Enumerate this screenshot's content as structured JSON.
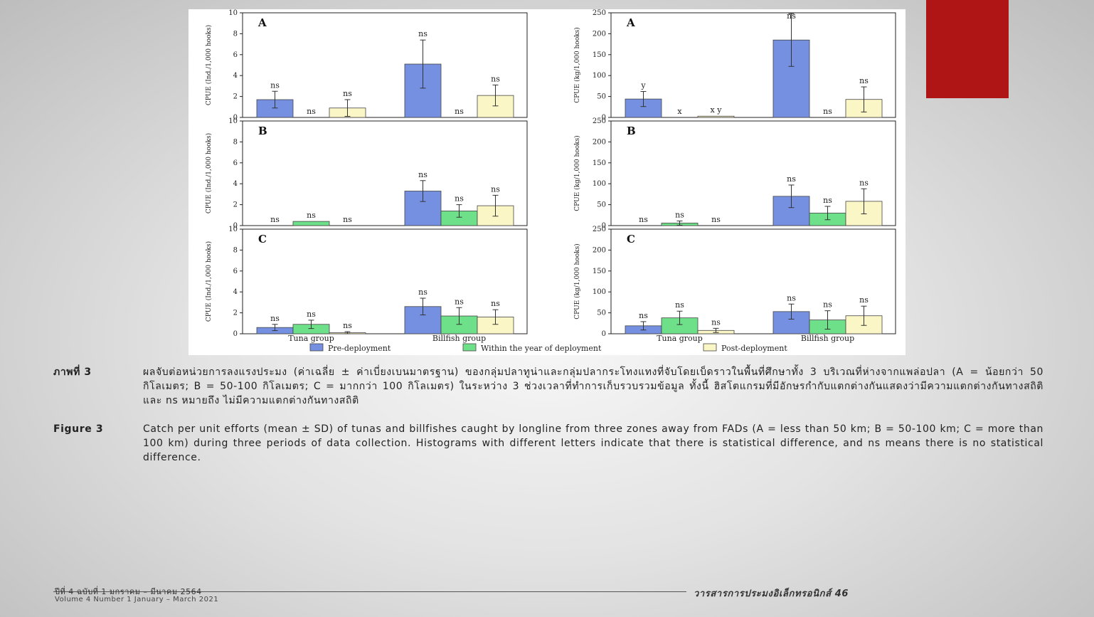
{
  "chart_data": [
    {
      "type": "bar",
      "panel": "A",
      "categories": [
        "Tuna group",
        "Billfish group"
      ],
      "ylabel": "CPUE (Ind./1,000 hooks)",
      "ylim": [
        0,
        10
      ],
      "yticks": [
        0,
        2,
        4,
        6,
        8,
        10
      ],
      "series": [
        {
          "name": "Pre-deployment",
          "values": [
            1.7,
            5.1
          ],
          "errors": [
            0.8,
            2.3
          ],
          "labels": [
            "ns",
            "ns"
          ]
        },
        {
          "name": "Within the year of deployment",
          "values": [
            0,
            0
          ],
          "errors": [
            0,
            0
          ],
          "labels": [
            "ns",
            "ns"
          ]
        },
        {
          "name": "Post-deployment",
          "values": [
            0.9,
            2.1
          ],
          "errors": [
            0.8,
            1.0
          ],
          "labels": [
            "ns",
            "ns"
          ]
        }
      ]
    },
    {
      "type": "bar",
      "panel": "A",
      "categories": [
        "Tuna group",
        "Billfish group"
      ],
      "ylabel": "CPUE (kg/1,000 hooks)",
      "ylim": [
        0,
        250
      ],
      "yticks": [
        0,
        50,
        100,
        150,
        200,
        250
      ],
      "series": [
        {
          "name": "Pre-deployment",
          "values": [
            44,
            185
          ],
          "errors": [
            18,
            63
          ],
          "labels": [
            "y",
            "ns"
          ]
        },
        {
          "name": "Within the year of deployment",
          "values": [
            0,
            0
          ],
          "errors": [
            0,
            0
          ],
          "labels": [
            "x",
            "ns"
          ]
        },
        {
          "name": "Post-deployment",
          "values": [
            3,
            43
          ],
          "errors": [
            0,
            30
          ],
          "labels": [
            "x y",
            "ns"
          ]
        }
      ]
    },
    {
      "type": "bar",
      "panel": "B",
      "categories": [
        "Tuna group",
        "Billfish group"
      ],
      "ylabel": "CPUE (Ind./1,000 hooks)",
      "ylim": [
        0,
        10
      ],
      "yticks": [
        0,
        2,
        4,
        6,
        8,
        10
      ],
      "series": [
        {
          "name": "Pre-deployment",
          "values": [
            0,
            3.3
          ],
          "errors": [
            0,
            1.0
          ],
          "labels": [
            "ns",
            "ns"
          ]
        },
        {
          "name": "Within the year of deployment",
          "values": [
            0.4,
            1.4
          ],
          "errors": [
            0,
            0.6
          ],
          "labels": [
            "ns",
            "ns"
          ]
        },
        {
          "name": "Post-deployment",
          "values": [
            0,
            1.9
          ],
          "errors": [
            0,
            1.0
          ],
          "labels": [
            "ns",
            "ns"
          ]
        }
      ]
    },
    {
      "type": "bar",
      "panel": "B",
      "categories": [
        "Tuna group",
        "Billfish group"
      ],
      "ylabel": "CPUE (kg/1,000 hooks)",
      "ylim": [
        0,
        250
      ],
      "yticks": [
        0,
        50,
        100,
        150,
        200,
        250
      ],
      "series": [
        {
          "name": "Pre-deployment",
          "values": [
            0,
            70
          ],
          "errors": [
            0,
            27
          ],
          "labels": [
            "ns",
            "ns"
          ]
        },
        {
          "name": "Within the year of deployment",
          "values": [
            6,
            30
          ],
          "errors": [
            5,
            16
          ],
          "labels": [
            "ns",
            "ns"
          ]
        },
        {
          "name": "Post-deployment",
          "values": [
            0,
            58
          ],
          "errors": [
            0,
            30
          ],
          "labels": [
            "ns",
            "ns"
          ]
        }
      ]
    },
    {
      "type": "bar",
      "panel": "C",
      "categories": [
        "Tuna group",
        "Billfish group"
      ],
      "ylabel": "CPUE (Ind./1,000 hooks)",
      "ylim": [
        0,
        10
      ],
      "yticks": [
        0,
        2,
        4,
        6,
        8,
        10
      ],
      "series": [
        {
          "name": "Pre-deployment",
          "values": [
            0.6,
            2.6
          ],
          "errors": [
            0.3,
            0.8
          ],
          "labels": [
            "ns",
            "ns"
          ]
        },
        {
          "name": "Within the year of deployment",
          "values": [
            0.9,
            1.7
          ],
          "errors": [
            0.4,
            0.8
          ],
          "labels": [
            "ns",
            "ns"
          ]
        },
        {
          "name": "Post-deployment",
          "values": [
            0.1,
            1.6
          ],
          "errors": [
            0.1,
            0.7
          ],
          "labels": [
            "ns",
            "ns"
          ]
        }
      ]
    },
    {
      "type": "bar",
      "panel": "C",
      "categories": [
        "Tuna group",
        "Billfish group"
      ],
      "ylabel": "CPUE (kg/1,000 hooks)",
      "ylim": [
        0,
        250
      ],
      "yticks": [
        0,
        50,
        100,
        150,
        200,
        250
      ],
      "series": [
        {
          "name": "Pre-deployment",
          "values": [
            19,
            53
          ],
          "errors": [
            10,
            18
          ],
          "labels": [
            "ns",
            "ns"
          ]
        },
        {
          "name": "Within the year of deployment",
          "values": [
            38,
            33
          ],
          "errors": [
            16,
            22
          ],
          "labels": [
            "ns",
            "ns"
          ]
        },
        {
          "name": "Post-deployment",
          "values": [
            8,
            43
          ],
          "errors": [
            5,
            23
          ],
          "labels": [
            "ns",
            "ns"
          ]
        }
      ]
    }
  ],
  "legend": {
    "entries": [
      {
        "label": "Pre-deployment",
        "color": "#7590e0"
      },
      {
        "label": "Within the year of deployment",
        "color": "#6fe08a"
      },
      {
        "label": "Post-deployment",
        "color": "#fbf6c6"
      }
    ]
  },
  "caption": {
    "thai_lead": "ภาพที่ 3",
    "thai_text": "ผลจับต่อหน่วยการลงแรงประมง (ค่าเฉลี่ย ± ค่าเบี่ยงเบนมาตรฐาน) ของกลุ่มปลาทูน่าและกลุ่มปลากระโทงแทงที่จับโดยเบ็ดราวในพื้นที่ศึกษาทั้ง 3 บริเวณที่ห่างจากแพล่อปลา (A = น้อยกว่า 50 กิโลเมตร; B = 50-100 กิโลเมตร; C = มากกว่า 100 กิโลเมตร) ในระหว่าง 3 ช่วงเวลาที่ทำการเก็บรวบรวมข้อมูล ทั้งนี้ ฮิสโตแกรมที่มีอักษรกำกับแตกต่างกันแสดงว่ามีความแตกต่างกันทางสถิติ และ ns หมายถึง ไม่มีความแตกต่างกันทางสถิติ",
    "en_lead": "Figure 3",
    "en_text": "Catch per unit efforts (mean ± SD) of tunas and billfishes caught by longline from three zones away from FADs (A = less than 50 km; B = 50-100 km; C = more than 100 km) during three periods of data collection. Histograms with different letters indicate that there is statistical difference, and ns means there is no statistical difference."
  },
  "footer": {
    "left_line1": "ปีที่ 4 ฉบับที่ 1 มกราคม – มีนาคม 2564",
    "left_line2": "Volume 4 Number 1 January – March 2021",
    "right": "วารสารการประมงอิเล็กทรอนิกส์  46"
  },
  "colors": {
    "accent_block": "#b01515"
  }
}
